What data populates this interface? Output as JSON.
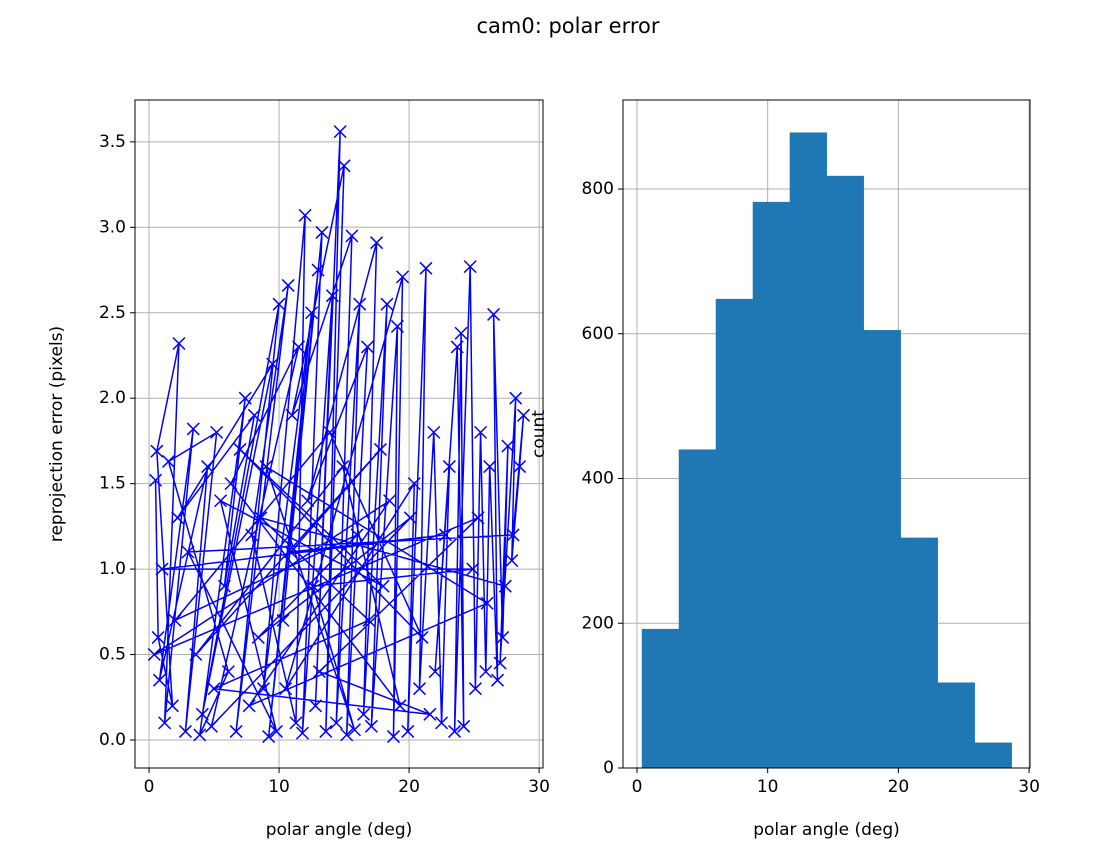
{
  "title": "cam0: polar error",
  "chart_data": [
    {
      "type": "line",
      "marker": "x",
      "color": "#0000ff",
      "xlabel": "polar angle (deg)",
      "ylabel": "reprojection error (pixels)",
      "x": [
        0.5,
        0.7,
        1.8,
        0.6,
        2.3,
        1.2,
        3.4,
        0.8,
        4.5,
        2.8,
        5.2,
        1.5,
        6.1,
        3.9,
        7.4,
        5.8,
        8.1,
        2.2,
        9.5,
        4.1,
        10.0,
        6.7,
        10.7,
        7.9,
        11.3,
        12.0,
        8.8,
        12.5,
        9.2,
        13.0,
        10.3,
        13.3,
        11.8,
        14.1,
        12.8,
        14.7,
        13.6,
        15.0,
        11.0,
        15.6,
        14.4,
        16.2,
        15.2,
        16.8,
        12.2,
        17.5,
        16.5,
        18.3,
        17.1,
        19.1,
        18.8,
        19.5,
        10.5,
        20.4,
        19.9,
        21.3,
        20.8,
        21.9,
        22.5,
        23.1,
        22.0,
        23.7,
        24.2,
        24.0,
        23.5,
        24.7,
        25.1,
        25.5,
        25.9,
        26.2,
        26.8,
        26.5,
        27.2,
        27.6,
        27.0,
        28.2,
        27.9,
        28.5,
        28.8,
        28.0,
        3.0,
        9.8,
        5.5,
        18.0,
        7.0,
        21.0,
        13.9,
        2.0,
        16.0,
        8.4,
        20.1,
        4.8,
        11.5,
        6.3,
        19.3,
        14.9,
        3.6,
        17.8,
        10.9,
        22.8,
        1.0,
        24.9,
        12.6,
        15.8,
        9.0,
        26.0,
        7.7,
        18.5,
        0.4,
        25.3,
        13.1,
        21.6,
        5.0,
        16.9,
        8.6,
        27.4
      ],
      "values": [
        1.52,
        0.6,
        0.2,
        1.69,
        2.32,
        0.1,
        1.82,
        0.35,
        1.6,
        0.05,
        1.8,
        1.63,
        0.4,
        0.03,
        2.0,
        0.9,
        1.9,
        1.3,
        2.2,
        0.15,
        2.55,
        0.05,
        2.66,
        1.2,
        0.1,
        3.07,
        0.3,
        2.5,
        0.02,
        2.75,
        0.7,
        2.97,
        0.04,
        2.6,
        0.2,
        3.56,
        0.05,
        3.36,
        1.9,
        2.95,
        0.1,
        2.55,
        0.03,
        2.3,
        1.4,
        2.91,
        0.15,
        2.55,
        0.08,
        2.42,
        0.02,
        2.71,
        0.3,
        1.5,
        0.05,
        2.76,
        0.3,
        1.8,
        0.1,
        1.6,
        0.4,
        2.3,
        0.08,
        2.38,
        0.05,
        2.77,
        0.3,
        1.8,
        0.4,
        1.6,
        0.35,
        2.49,
        0.6,
        1.72,
        0.45,
        2.0,
        1.05,
        1.6,
        1.9,
        1.2,
        1.1,
        0.05,
        1.4,
        0.9,
        1.7,
        0.6,
        1.8,
        0.7,
        1.2,
        0.6,
        1.3,
        0.08,
        2.3,
        1.5,
        0.2,
        1.6,
        0.5,
        1.7,
        1.1,
        1.2,
        1.0,
        1.0,
        0.9,
        0.06,
        1.6,
        0.8,
        0.2,
        1.4,
        0.5,
        1.3,
        0.4,
        0.15,
        0.3,
        0.7,
        1.3,
        0.9
      ],
      "xlim": [
        -1.08,
        30.3
      ],
      "ylim": [
        -0.164,
        3.745
      ],
      "xticks": [
        0,
        10,
        20,
        30
      ],
      "yticks": [
        {
          "value": 0,
          "label": "0.0"
        },
        0.5,
        {
          "value": 1,
          "label": "1.0"
        },
        1.5,
        {
          "value": 2,
          "label": "2.0"
        },
        2.5,
        {
          "value": 3,
          "label": "3.0"
        },
        3.5
      ],
      "grid": true
    },
    {
      "type": "histogram",
      "color": "#1f77b4",
      "xlabel": "polar angle (deg)",
      "ylabel": "count",
      "bins": [
        0.38,
        3.21,
        6.04,
        8.87,
        11.7,
        14.53,
        17.36,
        20.19,
        23.02,
        25.85,
        28.68
      ],
      "values": [
        192,
        440,
        648,
        782,
        878,
        818,
        605,
        318,
        118,
        35
      ],
      "xlim": [
        -1.07,
        30.07
      ],
      "ylim": [
        0,
        923
      ],
      "xticks": [
        0,
        10,
        20,
        30
      ],
      "yticks": [
        0,
        200,
        400,
        600,
        800
      ],
      "grid": true
    }
  ]
}
